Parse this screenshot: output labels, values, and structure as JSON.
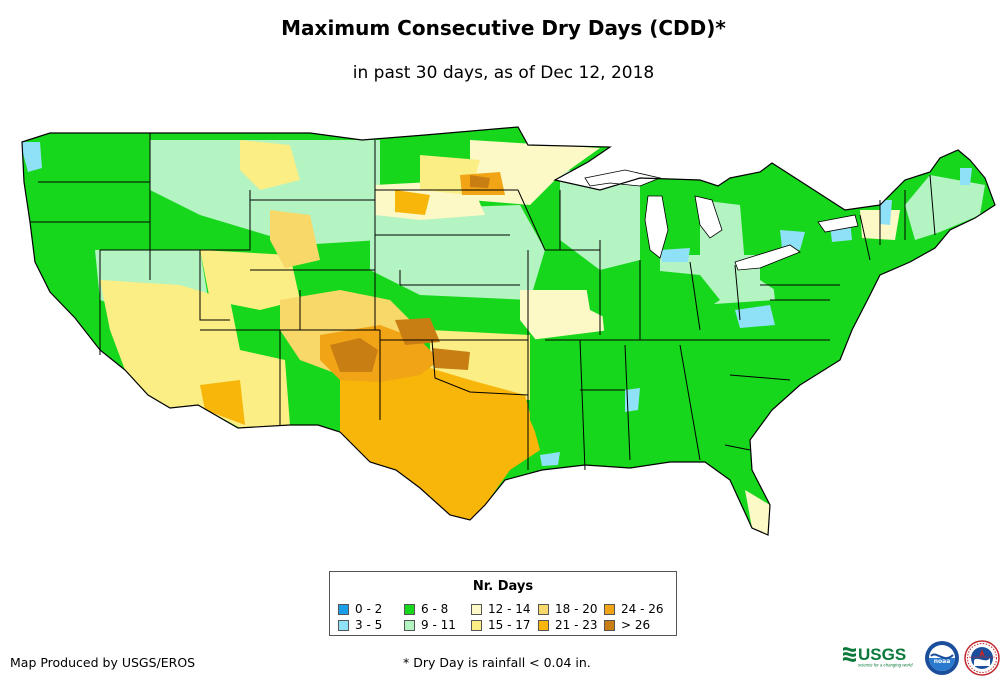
{
  "title": "Maximum Consecutive Dry Days (CDD)*",
  "subtitle": "in past 30 days, as of Dec 12, 2018",
  "legend": {
    "title": "Nr. Days",
    "items": [
      {
        "label": "0 - 2",
        "color": "#1a9ee8"
      },
      {
        "label": "3 - 5",
        "color": "#8fe1f7"
      },
      {
        "label": "6 - 8",
        "color": "#17d71c"
      },
      {
        "label": "9 - 11",
        "color": "#b4f3c2"
      },
      {
        "label": "12 - 14",
        "color": "#fcf9c6"
      },
      {
        "label": "15 - 17",
        "color": "#fbee85"
      },
      {
        "label": "18 - 20",
        "color": "#f8d868"
      },
      {
        "label": "21 - 23",
        "color": "#f8b50a"
      },
      {
        "label": "24 - 26",
        "color": "#f0a416"
      },
      {
        "label": "> 26",
        "color": "#c87e12"
      }
    ]
  },
  "credit": "Map Produced by USGS/EROS",
  "footnote": "* Dry Day is rainfall < 0.04 in.",
  "logos": {
    "usgs": "USGS",
    "usgs_tagline": "science for a changing world",
    "noaa": "noaa",
    "nws": "NATIONAL WEATHER SERVICE"
  }
}
